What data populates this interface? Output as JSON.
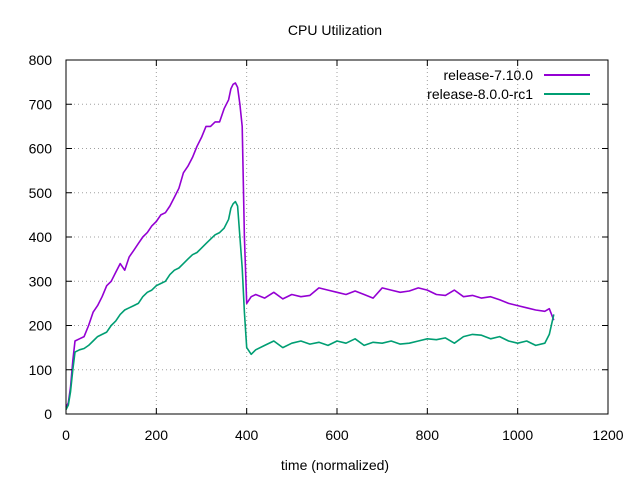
{
  "chart_data": {
    "type": "line",
    "title": "CPU Utilization",
    "xlabel": "time (normalized)",
    "ylabel": "",
    "xlim": [
      0,
      1200
    ],
    "ylim": [
      0,
      800
    ],
    "xticks": [
      0,
      200,
      400,
      600,
      800,
      1000,
      1200
    ],
    "yticks": [
      0,
      100,
      200,
      300,
      400,
      500,
      600,
      700,
      800
    ],
    "grid": true,
    "legend_position": "top-right",
    "series": [
      {
        "name": "release-7.10.0",
        "color": "#9400d3",
        "x": [
          0,
          5,
          10,
          15,
          20,
          30,
          40,
          50,
          60,
          70,
          80,
          90,
          100,
          110,
          120,
          130,
          140,
          150,
          160,
          170,
          180,
          190,
          200,
          210,
          220,
          230,
          240,
          250,
          260,
          270,
          280,
          290,
          300,
          310,
          320,
          330,
          340,
          350,
          360,
          365,
          370,
          375,
          380,
          385,
          390,
          395,
          400,
          410,
          420,
          440,
          460,
          480,
          500,
          520,
          540,
          560,
          580,
          600,
          620,
          640,
          660,
          680,
          700,
          720,
          740,
          760,
          780,
          800,
          820,
          840,
          860,
          880,
          900,
          920,
          940,
          960,
          980,
          1000,
          1020,
          1040,
          1060,
          1070,
          1080
        ],
        "values": [
          15,
          25,
          60,
          120,
          165,
          170,
          175,
          200,
          230,
          245,
          265,
          290,
          300,
          320,
          340,
          325,
          355,
          370,
          385,
          400,
          410,
          425,
          435,
          450,
          455,
          470,
          490,
          510,
          545,
          560,
          580,
          605,
          625,
          650,
          650,
          660,
          660,
          690,
          710,
          735,
          745,
          748,
          738,
          700,
          650,
          400,
          250,
          265,
          270,
          262,
          275,
          260,
          270,
          265,
          268,
          285,
          280,
          275,
          270,
          278,
          270,
          262,
          285,
          280,
          275,
          278,
          285,
          280,
          270,
          268,
          280,
          265,
          268,
          262,
          265,
          258,
          250,
          245,
          240,
          235,
          232,
          238,
          212
        ]
      },
      {
        "name": "release-8.0.0-rc1",
        "color": "#009e73",
        "x": [
          0,
          5,
          10,
          15,
          20,
          30,
          40,
          50,
          60,
          70,
          80,
          90,
          100,
          110,
          120,
          130,
          140,
          150,
          160,
          170,
          180,
          190,
          200,
          210,
          220,
          230,
          240,
          250,
          260,
          270,
          280,
          290,
          300,
          310,
          320,
          330,
          340,
          350,
          360,
          365,
          370,
          375,
          380,
          385,
          390,
          395,
          400,
          410,
          420,
          440,
          460,
          480,
          500,
          520,
          540,
          560,
          580,
          600,
          620,
          640,
          660,
          680,
          700,
          720,
          740,
          760,
          780,
          800,
          820,
          840,
          860,
          880,
          900,
          920,
          940,
          960,
          980,
          1000,
          1020,
          1040,
          1060,
          1070,
          1080
        ],
        "values": [
          10,
          20,
          50,
          100,
          140,
          145,
          148,
          155,
          165,
          175,
          180,
          185,
          200,
          210,
          225,
          235,
          240,
          245,
          250,
          265,
          275,
          280,
          290,
          295,
          300,
          315,
          325,
          330,
          340,
          350,
          360,
          365,
          375,
          385,
          395,
          405,
          410,
          420,
          440,
          465,
          475,
          480,
          470,
          400,
          330,
          230,
          150,
          135,
          145,
          155,
          165,
          150,
          160,
          165,
          158,
          162,
          155,
          165,
          160,
          170,
          155,
          162,
          160,
          165,
          158,
          160,
          165,
          170,
          168,
          172,
          160,
          175,
          180,
          178,
          170,
          175,
          165,
          160,
          165,
          155,
          160,
          180,
          225
        ]
      }
    ]
  }
}
